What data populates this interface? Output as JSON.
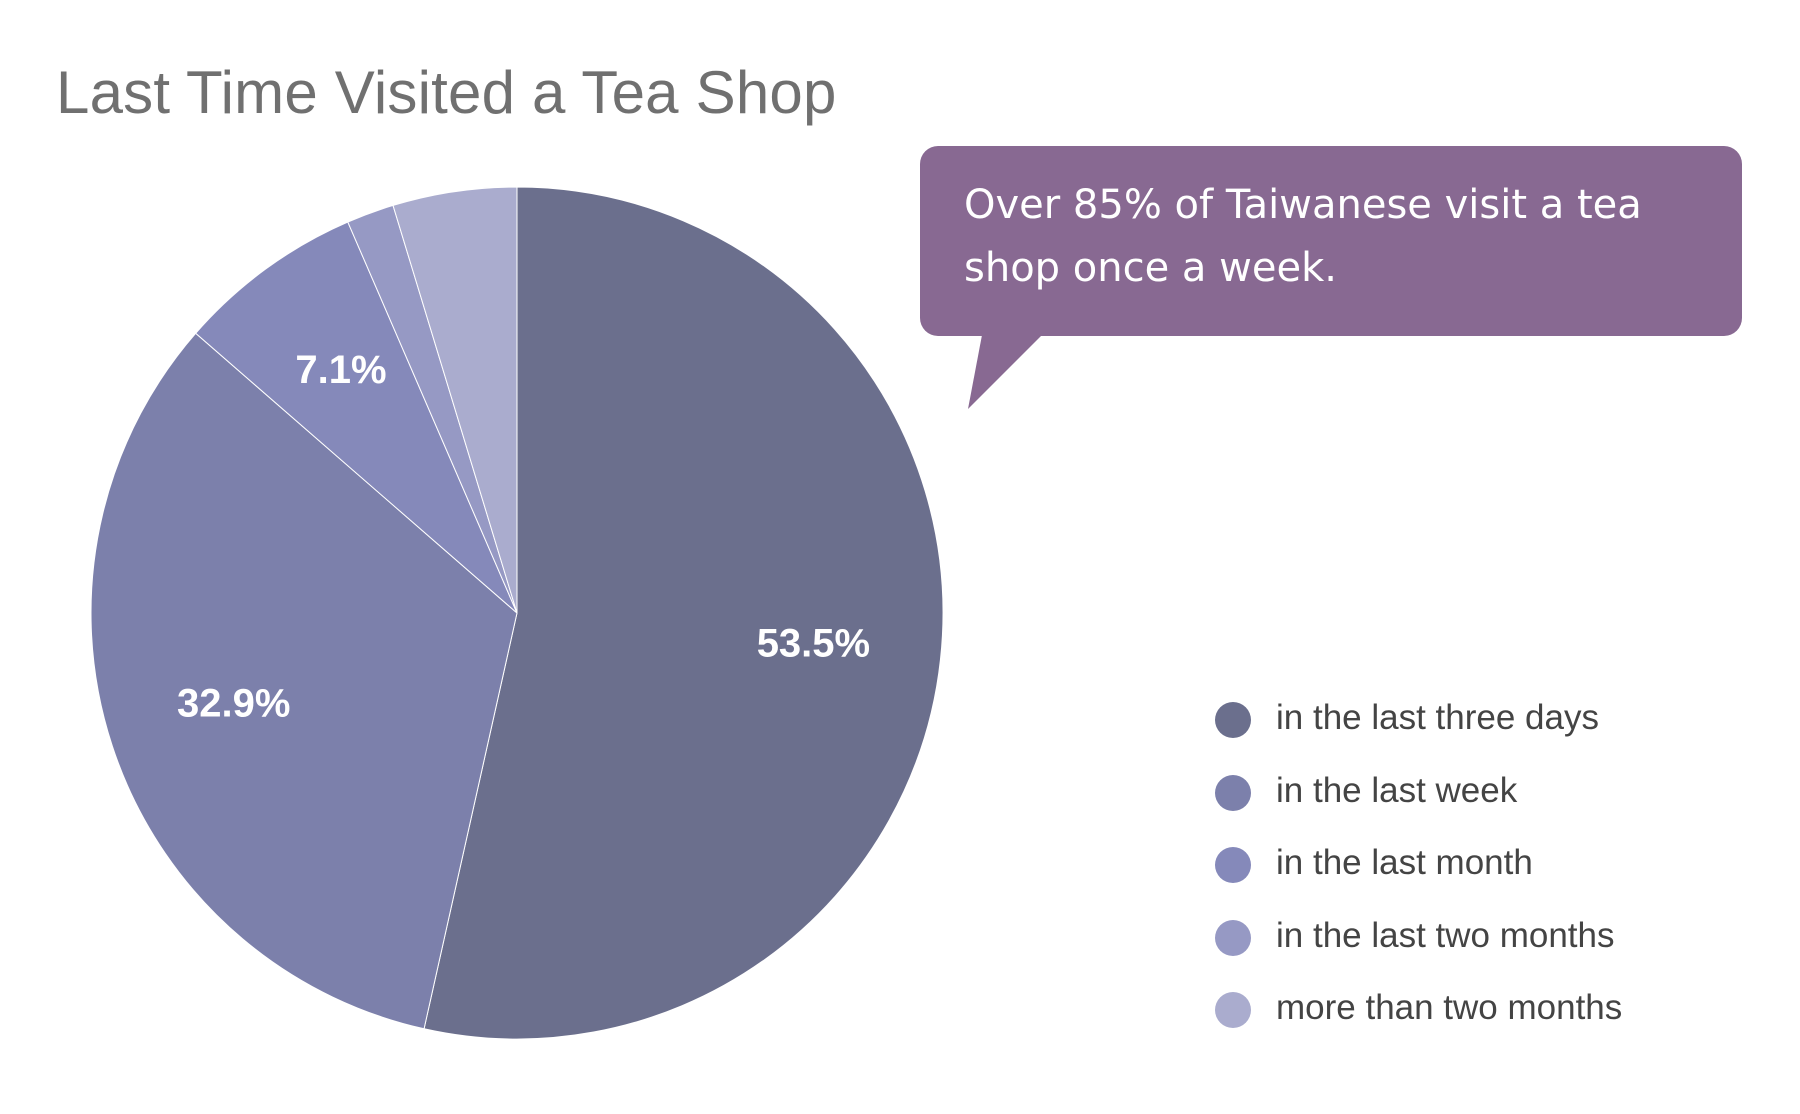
{
  "chart_data": {
    "type": "pie",
    "title": "Last Time Visited a Tea Shop",
    "categories": [
      "in the last three days",
      "in the last week",
      "in the last month",
      "in the last two months",
      "more than two months"
    ],
    "values": [
      53.5,
      32.9,
      7.1,
      1.8,
      4.7
    ],
    "data_labels": [
      "53.5%",
      "32.9%",
      "7.1%",
      "",
      ""
    ],
    "colors": [
      "#6b6f8d",
      "#7c80ab",
      "#8589ba",
      "#9699c4",
      "#aaacce"
    ],
    "start_angle_deg": 0,
    "direction": "clockwise",
    "legend_position": "bottom-right",
    "annotation": "Over 85% of Taiwanese visit a tea shop once a week."
  },
  "callout": {
    "text": "Over 85% of Taiwanese visit a tea shop once a week.",
    "color": "#886992"
  }
}
